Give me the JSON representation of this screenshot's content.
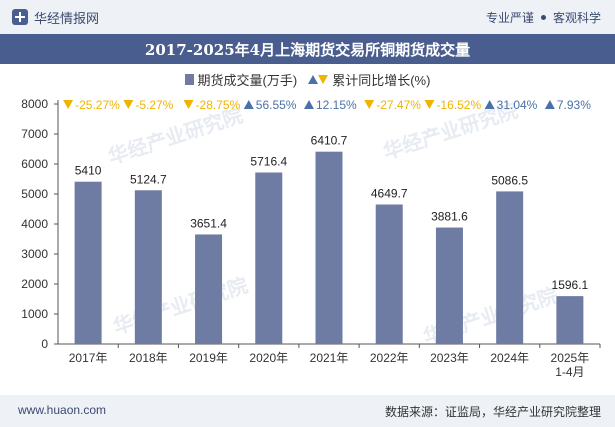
{
  "header": {
    "brand": "华经情报网",
    "logo_icon": "huajing-logo-icon",
    "tags": [
      "专业严谨",
      "客观科学"
    ]
  },
  "chart_data": {
    "type": "bar",
    "title": "2017-2025年4月上海期货交易所铜期货成交量",
    "categories": [
      "2017年",
      "2018年",
      "2019年",
      "2020年",
      "2021年",
      "2022年",
      "2023年",
      "2024年",
      "2025年\n1-4月"
    ],
    "series": [
      {
        "name": "期货成交量(万手)",
        "values": [
          5410,
          5124.7,
          3651.4,
          5716.4,
          6410.7,
          4649.7,
          3881.6,
          5086.5,
          1596.1
        ],
        "color": "#6e7ca3"
      }
    ],
    "value_labels": [
      "5410",
      "5124.7",
      "3651.4",
      "5716.4",
      "6410.7",
      "4649.7",
      "3881.6",
      "5086.5",
      "1596.1"
    ],
    "growth": {
      "name": "累计同比增长(%)",
      "values": [
        -25.27,
        -5.27,
        -28.75,
        56.55,
        12.15,
        -27.47,
        -16.52,
        31.04,
        7.93
      ],
      "labels": [
        "-25.27%",
        "-5.27%",
        "-28.75%",
        "56.55%",
        "12.15%",
        "-27.47%",
        "-16.52%",
        "31.04%",
        "7.93%"
      ],
      "up_color": "#4a72a8",
      "down_color": "#f0b400"
    },
    "ylim": [
      0,
      8000
    ],
    "yticks": [
      0,
      1000,
      2000,
      3000,
      4000,
      5000,
      6000,
      7000,
      8000
    ],
    "grid": false,
    "legend_position": "top-center"
  },
  "watermark": "华经产业研究院",
  "footer": {
    "url": "www.huaon.com",
    "source": "数据来源：证监局，华经产业研究院整理"
  }
}
